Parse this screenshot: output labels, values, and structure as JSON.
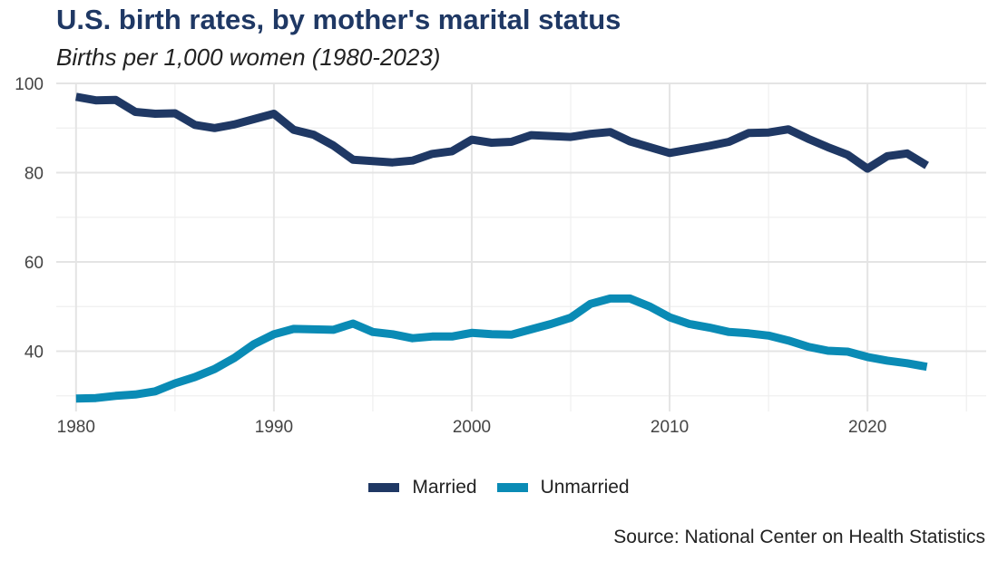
{
  "chart_data": {
    "type": "line",
    "title": "U.S. birth rates, by mother's marital status",
    "subtitle": "Births per 1,000 women (1980-2023)",
    "xlabel": "",
    "ylabel": "",
    "xlim": [
      1979,
      2026
    ],
    "ylim": [
      26.5,
      100
    ],
    "x_ticks": [
      1980,
      1990,
      2000,
      2010,
      2020
    ],
    "y_ticks": [
      40,
      60,
      80,
      100
    ],
    "grid": true,
    "legend_position": "bottom",
    "x": [
      1980,
      1981,
      1982,
      1983,
      1984,
      1985,
      1986,
      1987,
      1988,
      1989,
      1990,
      1991,
      1992,
      1993,
      1994,
      1995,
      1996,
      1997,
      1998,
      1999,
      2000,
      2001,
      2002,
      2003,
      2004,
      2005,
      2006,
      2007,
      2008,
      2009,
      2010,
      2011,
      2012,
      2013,
      2014,
      2015,
      2016,
      2017,
      2018,
      2019,
      2020,
      2021,
      2022,
      2023
    ],
    "series": [
      {
        "name": "Married",
        "color": "#1f3864",
        "values": [
          97.0,
          96.2,
          96.3,
          93.6,
          93.2,
          93.3,
          90.7,
          90.0,
          90.8,
          92.0,
          93.2,
          89.6,
          88.5,
          86.1,
          82.9,
          82.6,
          82.3,
          82.7,
          84.2,
          84.8,
          87.4,
          86.7,
          86.9,
          88.4,
          88.2,
          88.0,
          88.7,
          89.1,
          87.0,
          85.7,
          84.4,
          85.2,
          86.0,
          86.9,
          88.9,
          89.0,
          89.7,
          87.6,
          85.7,
          84.0,
          80.9,
          83.7,
          84.3,
          81.6
        ]
      },
      {
        "name": "Unmarried",
        "color": "#0a8bb5",
        "values": [
          29.4,
          29.5,
          30.0,
          30.3,
          31.0,
          32.8,
          34.2,
          36.0,
          38.5,
          41.6,
          43.8,
          45.0,
          44.9,
          44.8,
          46.2,
          44.3,
          43.8,
          42.9,
          43.3,
          43.3,
          44.1,
          43.8,
          43.7,
          44.9,
          46.1,
          47.5,
          50.6,
          51.8,
          51.8,
          50.0,
          47.6,
          46.1,
          45.3,
          44.3,
          44.0,
          43.5,
          42.4,
          41.0,
          40.1,
          39.9,
          38.7,
          37.9,
          37.3,
          36.5
        ]
      }
    ]
  },
  "source": "Source: National Center on Health Statistics"
}
